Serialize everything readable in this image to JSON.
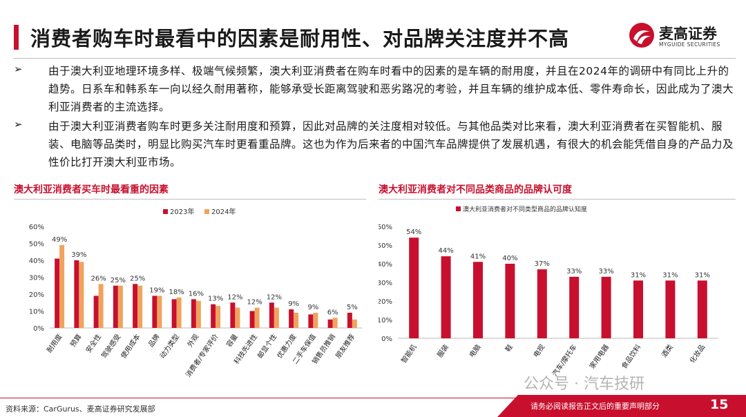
{
  "header": {
    "title": "消费者购车时最看中的因素是耐用性、对品牌关注度并不高",
    "logo_cn": "麦高证券",
    "logo_en": "MYGUIDE SECURITIES"
  },
  "bullets": [
    {
      "marker": "➢",
      "text": "由于澳大利亚地理环境多样、极端气候频繁，澳大利亚消费者在购车时看中的因素的是车辆的耐用度，并且在2024年的调研中有同比上升的趋势。日系车和韩系车一向以经久耐用著称，能够承受长距离驾驶和恶劣路况的考验，并且车辆的维护成本低、零件寿命长，因此成为了澳大利亚消费者的主流选择。"
    },
    {
      "marker": "➢",
      "text": "由于澳大利亚消费者购车时更多关注耐用度和预算，因此对品牌的关注度相对较低。与其他品类对比来看，澳大利亚消费者在买智能机、服装、电脑等品类时，明显比购买汽车时更看重品牌。这也为作为后来者的中国汽车品牌提供了发展机遇，有很大的机会能凭借自身的产品力及性价比打开澳大利亚市场。"
    }
  ],
  "left_panel": {
    "title": "澳大利亚消费者买车时最看重的因素"
  },
  "right_panel": {
    "title": "澳大利亚消费者对不同品类商品的品牌认可度"
  },
  "chart_data": [
    {
      "type": "bar",
      "title": "澳大利亚消费者买车时最看重的因素",
      "categories": [
        "耐用度",
        "预算",
        "安全性",
        "驾驶感受",
        "使用成本",
        "品牌",
        "动力类型",
        "外观",
        "消费者/专家评价",
        "容量",
        "科技先进性",
        "邮显个性",
        "优惠力度",
        "二手车保值",
        "销售员推销",
        "朋友推荐"
      ],
      "series": [
        {
          "name": "2023年",
          "values": [
            41,
            40,
            19,
            25,
            26,
            19,
            17,
            17,
            14,
            15,
            10,
            15,
            11,
            8,
            5,
            9
          ],
          "color": "#c8102e"
        },
        {
          "name": "2024年",
          "values": [
            49,
            39,
            26,
            25,
            25,
            19,
            18,
            16,
            13,
            12,
            12,
            12,
            9,
            9,
            6,
            5
          ],
          "color": "#f0a35e"
        }
      ],
      "data_labels": [
        "49%",
        "39%",
        "26%",
        "25%",
        "25%",
        "19%",
        "18%",
        "16%",
        "13%",
        "12%",
        "12%",
        "12%",
        "9%",
        "9%",
        "6%",
        "5%"
      ],
      "ylim": [
        0,
        60
      ],
      "yticks": [
        "0%",
        "10%",
        "20%",
        "30%",
        "40%",
        "50%",
        "60%"
      ],
      "grid": false,
      "legend_position": "top-center"
    },
    {
      "type": "bar",
      "title": "澳大利亚消费者对不同品类商品的品牌认可度",
      "categories": [
        "智能机",
        "服装",
        "电脑",
        "鞋",
        "电视",
        "汽车/摩托车",
        "家用电器",
        "食品饮料",
        "酒类",
        "化妆品"
      ],
      "series": [
        {
          "name": "澳大利亚消费者对不同类型商品的品牌认知度",
          "values": [
            54,
            44,
            41,
            40,
            37,
            33,
            33,
            31,
            31,
            31
          ],
          "color": "#c8102e"
        }
      ],
      "data_labels": [
        "54%",
        "44%",
        "41%",
        "40%",
        "37%",
        "33%",
        "33%",
        "31%",
        "31%",
        "31%"
      ],
      "ylim": [
        0,
        60
      ],
      "yticks": [
        "0%",
        "10%",
        "20%",
        "30%",
        "40%",
        "50%",
        "60%"
      ],
      "grid": false,
      "legend_position": "top-left"
    }
  ],
  "footer": {
    "source": "资料来源：CarGurus、麦高证券研究发展部",
    "notice": "请务必阅读报告正文后的重要声明部分",
    "page": "15",
    "watermark": "公众号 · 汽车技研"
  },
  "colors": {
    "accent": "#c8102e",
    "secondary": "#f0a35e"
  }
}
